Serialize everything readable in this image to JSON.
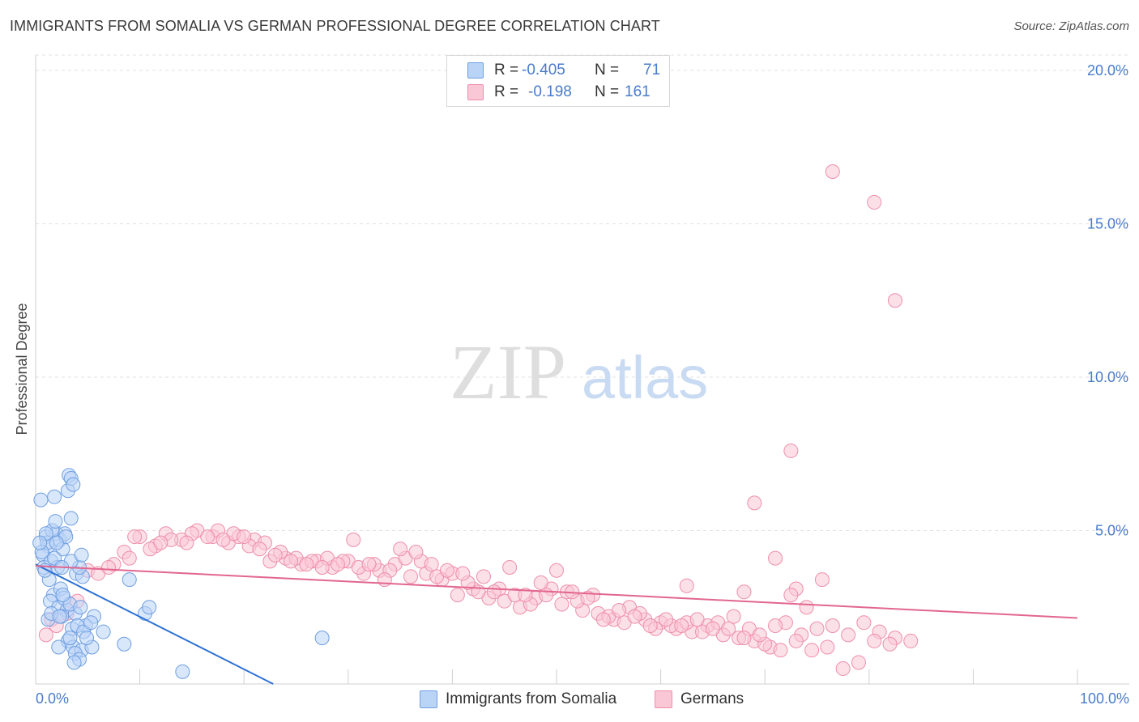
{
  "title": "IMMIGRANTS FROM SOMALIA VS GERMAN PROFESSIONAL DEGREE CORRELATION CHART",
  "source": "Source: ZipAtlas.com",
  "watermark": {
    "zip": "ZIP",
    "atlas": "atlas"
  },
  "stats": [
    {
      "r_label": "R =",
      "r_value": "-0.405",
      "n_label": "N =",
      "n_value": "71",
      "fill": "#b9d4f7",
      "stroke": "#6f9fe0"
    },
    {
      "r_label": "R =",
      "r_value": "-0.198",
      "n_label": "N =",
      "n_value": "161",
      "fill": "#f9c7d6",
      "stroke": "#ee8eab"
    }
  ],
  "legend": [
    {
      "label": "Immigrants from Somalia",
      "fill": "#b9d4f7",
      "stroke": "#6f9fe0"
    },
    {
      "label": "Germans",
      "fill": "#f9c7d6",
      "stroke": "#ee8eab"
    }
  ],
  "chart_data": {
    "type": "scatter",
    "title": "IMMIGRANTS FROM SOMALIA VS GERMAN PROFESSIONAL DEGREE CORRELATION CHART",
    "xlabel": "",
    "ylabel": "Professional Degree",
    "xlim": [
      0,
      100
    ],
    "ylim": [
      0,
      20.5
    ],
    "x_tick_labels": [
      {
        "value": 0,
        "label": "0.0%"
      },
      {
        "value": 100,
        "label": "100.0%"
      }
    ],
    "y_ticks": [
      {
        "value": 5,
        "label": "5.0%"
      },
      {
        "value": 10,
        "label": "10.0%"
      },
      {
        "value": 15,
        "label": "15.0%"
      },
      {
        "value": 20,
        "label": "20.0%"
      }
    ],
    "series": [
      {
        "name": "Immigrants from Somalia",
        "color": "#6f9fe0",
        "fill": "#b9d4f7",
        "line_color": "#2f72d4",
        "trend": {
          "x0": 0,
          "y0": 3.9,
          "x1": 22.8,
          "y1": 0
        },
        "points": [
          [
            0.5,
            6.0
          ],
          [
            1.0,
            4.8
          ],
          [
            1.2,
            4.5
          ],
          [
            0.7,
            4.2
          ],
          [
            0.8,
            3.8
          ],
          [
            1.5,
            4.0
          ],
          [
            1.3,
            3.4
          ],
          [
            2.0,
            4.9
          ],
          [
            2.3,
            4.7
          ],
          [
            2.8,
            4.9
          ],
          [
            2.6,
            4.4
          ],
          [
            2.1,
            3.8
          ],
          [
            2.9,
            4.8
          ],
          [
            1.6,
            5.0
          ],
          [
            1.1,
            4.6
          ],
          [
            0.6,
            4.3
          ],
          [
            0.9,
            3.7
          ],
          [
            1.8,
            4.1
          ],
          [
            1.7,
            2.9
          ],
          [
            2.4,
            3.1
          ],
          [
            1.4,
            2.7
          ],
          [
            2.2,
            2.5
          ],
          [
            3.0,
            2.4
          ],
          [
            2.7,
            2.8
          ],
          [
            3.8,
            2.3
          ],
          [
            3.3,
            2.6
          ],
          [
            2.5,
            2.2
          ],
          [
            4.3,
            2.5
          ],
          [
            5.6,
            2.2
          ],
          [
            4.8,
            1.9
          ],
          [
            3.5,
            1.8
          ],
          [
            4.0,
            1.9
          ],
          [
            4.6,
            1.7
          ],
          [
            5.3,
            2.0
          ],
          [
            6.5,
            1.7
          ],
          [
            3.1,
            1.4
          ],
          [
            3.6,
            1.2
          ],
          [
            4.4,
            1.1
          ],
          [
            3.8,
            1.0
          ],
          [
            2.2,
            1.2
          ],
          [
            5.4,
            1.2
          ],
          [
            4.2,
            0.8
          ],
          [
            3.7,
            0.7
          ],
          [
            8.5,
            1.3
          ],
          [
            3.2,
            6.8
          ],
          [
            3.1,
            6.3
          ],
          [
            3.4,
            6.7
          ],
          [
            3.6,
            6.5
          ],
          [
            1.8,
            6.1
          ],
          [
            1.9,
            5.3
          ],
          [
            3.4,
            5.4
          ],
          [
            2.0,
            4.6
          ],
          [
            3.9,
            3.6
          ],
          [
            4.5,
            3.5
          ],
          [
            4.2,
            3.8
          ],
          [
            3.4,
            4.0
          ],
          [
            4.4,
            4.2
          ],
          [
            9.0,
            3.4
          ],
          [
            10.5,
            2.3
          ],
          [
            10.9,
            2.5
          ],
          [
            1.2,
            2.1
          ],
          [
            2.6,
            2.9
          ],
          [
            1.5,
            2.3
          ],
          [
            4.9,
            1.5
          ],
          [
            3.3,
            1.5
          ],
          [
            14.1,
            0.4
          ],
          [
            27.5,
            1.5
          ],
          [
            2.5,
            3.8
          ],
          [
            1.0,
            4.9
          ],
          [
            0.4,
            4.6
          ],
          [
            2.3,
            2.2
          ]
        ]
      },
      {
        "name": "Germans",
        "color": "#ee8eab",
        "fill": "#f9c7d6",
        "line_color": "#e2668f",
        "trend": {
          "x0": 0,
          "y0": 3.85,
          "x1": 100,
          "y1": 2.15
        },
        "points": [
          [
            76.5,
            16.7
          ],
          [
            80.5,
            15.7
          ],
          [
            82.5,
            12.5
          ],
          [
            72.5,
            7.6
          ],
          [
            69.0,
            5.9
          ],
          [
            71.0,
            4.1
          ],
          [
            75.5,
            3.4
          ],
          [
            73.0,
            3.1
          ],
          [
            74.0,
            2.5
          ],
          [
            62.5,
            3.2
          ],
          [
            68.0,
            3.0
          ],
          [
            72.5,
            2.9
          ],
          [
            7.5,
            3.9
          ],
          [
            8.5,
            4.3
          ],
          [
            10.0,
            4.8
          ],
          [
            11.5,
            4.5
          ],
          [
            12.5,
            4.9
          ],
          [
            14.0,
            4.7
          ],
          [
            15.5,
            5.0
          ],
          [
            17.0,
            4.8
          ],
          [
            18.5,
            4.6
          ],
          [
            19.5,
            4.8
          ],
          [
            21.0,
            4.7
          ],
          [
            22.5,
            4.0
          ],
          [
            24.0,
            4.1
          ],
          [
            25.5,
            3.9
          ],
          [
            27.0,
            4.0
          ],
          [
            28.5,
            3.8
          ],
          [
            30.0,
            4.0
          ],
          [
            31.5,
            3.6
          ],
          [
            33.0,
            3.7
          ],
          [
            34.5,
            3.9
          ],
          [
            36.0,
            3.5
          ],
          [
            37.5,
            3.6
          ],
          [
            39.0,
            3.4
          ],
          [
            40.5,
            2.9
          ],
          [
            42.0,
            3.1
          ],
          [
            43.5,
            2.8
          ],
          [
            45.0,
            2.7
          ],
          [
            46.5,
            2.5
          ],
          [
            48.0,
            2.8
          ],
          [
            49.5,
            3.1
          ],
          [
            51.0,
            3.0
          ],
          [
            52.5,
            2.4
          ],
          [
            54.0,
            2.3
          ],
          [
            55.5,
            2.1
          ],
          [
            57.0,
            2.5
          ],
          [
            58.5,
            2.1
          ],
          [
            60.0,
            2.0
          ],
          [
            61.5,
            1.8
          ],
          [
            63.0,
            1.7
          ],
          [
            64.5,
            1.9
          ],
          [
            66.0,
            1.6
          ],
          [
            67.5,
            1.5
          ],
          [
            69.0,
            1.4
          ],
          [
            70.5,
            1.2
          ],
          [
            72.0,
            2.0
          ],
          [
            73.5,
            1.6
          ],
          [
            75.0,
            1.8
          ],
          [
            76.5,
            1.9
          ],
          [
            78.0,
            1.6
          ],
          [
            79.5,
            2.0
          ],
          [
            81.0,
            1.7
          ],
          [
            82.5,
            1.5
          ],
          [
            1.0,
            1.6
          ],
          [
            1.5,
            2.1
          ],
          [
            2.0,
            1.9
          ],
          [
            3.0,
            2.3
          ],
          [
            4.0,
            2.7
          ],
          [
            5.0,
            3.7
          ],
          [
            6.0,
            3.6
          ],
          [
            7.0,
            3.8
          ],
          [
            9.0,
            4.1
          ],
          [
            11.0,
            4.4
          ],
          [
            13.0,
            4.7
          ],
          [
            15.0,
            4.9
          ],
          [
            17.5,
            5.0
          ],
          [
            19.0,
            4.9
          ],
          [
            20.5,
            4.5
          ],
          [
            22.0,
            4.6
          ],
          [
            23.5,
            4.3
          ],
          [
            25.0,
            4.1
          ],
          [
            26.5,
            4.0
          ],
          [
            28.0,
            4.1
          ],
          [
            29.5,
            4.0
          ],
          [
            31.0,
            3.8
          ],
          [
            32.5,
            3.9
          ],
          [
            34.0,
            3.7
          ],
          [
            35.5,
            4.1
          ],
          [
            37.0,
            4.0
          ],
          [
            38.5,
            3.5
          ],
          [
            40.0,
            3.6
          ],
          [
            41.5,
            3.3
          ],
          [
            43.0,
            3.5
          ],
          [
            44.5,
            3.1
          ],
          [
            46.0,
            2.9
          ],
          [
            47.5,
            2.6
          ],
          [
            49.0,
            2.9
          ],
          [
            50.5,
            2.6
          ],
          [
            52.0,
            2.7
          ],
          [
            53.5,
            2.9
          ],
          [
            55.0,
            2.2
          ],
          [
            56.5,
            2.0
          ],
          [
            58.0,
            2.3
          ],
          [
            59.5,
            1.8
          ],
          [
            61.0,
            1.9
          ],
          [
            62.5,
            2.0
          ],
          [
            64.0,
            1.7
          ],
          [
            65.5,
            2.0
          ],
          [
            67.0,
            2.2
          ],
          [
            68.5,
            1.8
          ],
          [
            70.0,
            1.3
          ],
          [
            71.5,
            1.1
          ],
          [
            73.0,
            1.4
          ],
          [
            74.5,
            1.1
          ],
          [
            76.0,
            1.2
          ],
          [
            77.5,
            0.5
          ],
          [
            79.0,
            0.7
          ],
          [
            80.5,
            1.4
          ],
          [
            82.0,
            1.3
          ],
          [
            84.0,
            1.4
          ],
          [
            9.5,
            4.8
          ],
          [
            12.0,
            4.6
          ],
          [
            14.5,
            4.6
          ],
          [
            16.5,
            4.8
          ],
          [
            18.0,
            4.7
          ],
          [
            20.0,
            4.8
          ],
          [
            21.5,
            4.4
          ],
          [
            23.0,
            4.2
          ],
          [
            24.5,
            4.0
          ],
          [
            26.0,
            3.9
          ],
          [
            27.5,
            3.8
          ],
          [
            29.0,
            3.9
          ],
          [
            30.5,
            4.7
          ],
          [
            32.0,
            3.9
          ],
          [
            33.5,
            3.4
          ],
          [
            35.0,
            4.4
          ],
          [
            36.5,
            4.3
          ],
          [
            38.0,
            3.9
          ],
          [
            39.5,
            3.7
          ],
          [
            41.0,
            3.6
          ],
          [
            42.5,
            3.0
          ],
          [
            44.0,
            3.0
          ],
          [
            45.5,
            3.8
          ],
          [
            47.0,
            2.9
          ],
          [
            48.5,
            3.3
          ],
          [
            50.0,
            3.7
          ],
          [
            51.5,
            3.0
          ],
          [
            53.0,
            2.8
          ],
          [
            54.5,
            2.1
          ],
          [
            56.0,
            2.4
          ],
          [
            57.5,
            2.2
          ],
          [
            59.0,
            1.9
          ],
          [
            60.5,
            2.1
          ],
          [
            62.0,
            1.9
          ],
          [
            63.5,
            2.1
          ],
          [
            65.0,
            1.8
          ],
          [
            66.5,
            1.8
          ],
          [
            68.0,
            1.5
          ],
          [
            69.5,
            1.6
          ],
          [
            71.0,
            1.9
          ]
        ]
      }
    ]
  }
}
